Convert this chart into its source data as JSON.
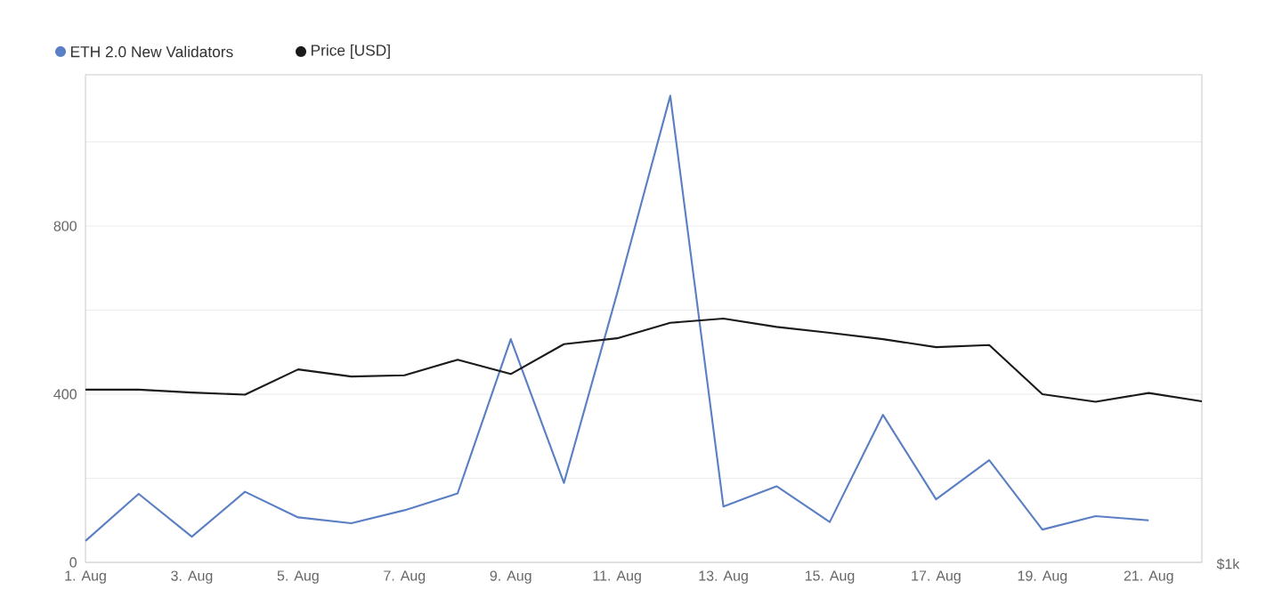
{
  "chart_data": {
    "type": "line",
    "categories": [
      "1. Aug",
      null,
      "3. Aug",
      null,
      "5. Aug",
      null,
      "7. Aug",
      null,
      "9. Aug",
      null,
      "11. Aug",
      null,
      "13. Aug",
      null,
      "15. Aug",
      null,
      "17. Aug",
      null,
      "19. Aug",
      null,
      "21. Aug",
      null
    ],
    "series": [
      {
        "name": "ETH 2.0 New Validators",
        "color": "#5b7fc4",
        "values": [
          51,
          163,
          61,
          168,
          107,
          93,
          124,
          164,
          531,
          189,
          640,
          1110,
          133,
          181,
          96,
          351,
          150,
          243,
          78,
          110,
          100,
          null
        ]
      },
      {
        "name": "Price [USD]",
        "color": "#1a1a1a",
        "values": [
          411,
          411,
          404,
          399,
          459,
          442,
          445,
          482,
          448,
          519,
          533,
          570,
          580,
          560,
          546,
          531,
          512,
          517,
          400,
          382,
          403,
          383
        ]
      }
    ],
    "ylim": [
      0,
      1160
    ],
    "yticks": [
      0,
      {
        "value": 200,
        "label": null
      },
      400,
      {
        "value": 600,
        "label": null
      },
      800,
      {
        "value": 1000,
        "label": null
      }
    ],
    "grid": "y",
    "legend": "top left",
    "marker": "none",
    "line_style": "solid",
    "annotations": [
      "$1k"
    ]
  }
}
